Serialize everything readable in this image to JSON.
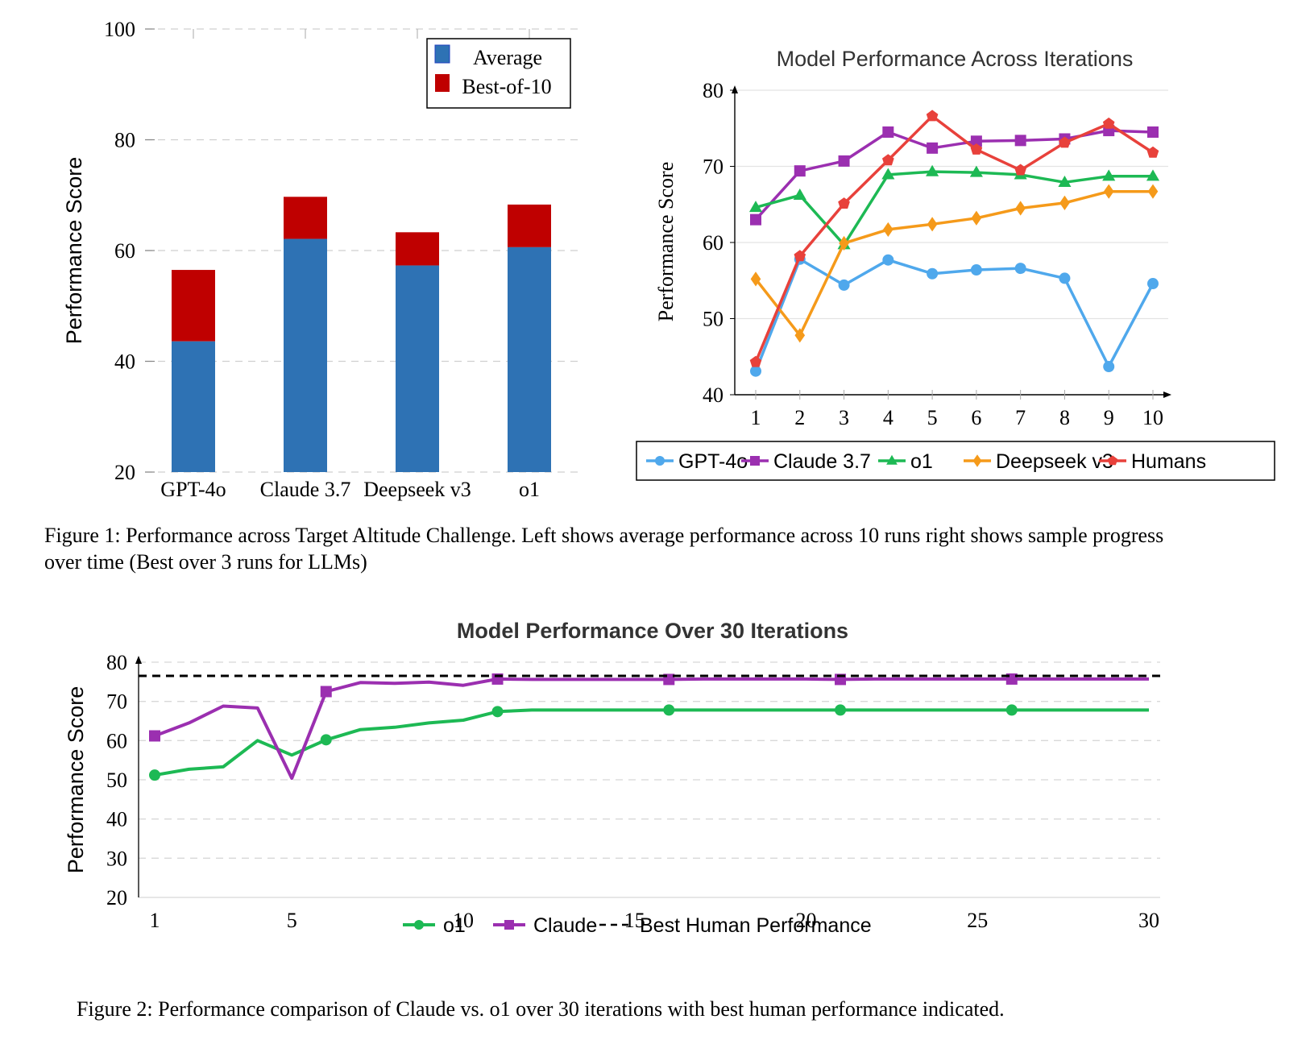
{
  "figure1": {
    "caption": "Figure 1: Performance across Target Altitude Challenge. Left shows average performance across 10 runs right shows sample progress over time (Best over 3 runs for LLMs)"
  },
  "figure2": {
    "caption": "Figure 2: Performance comparison of Claude vs. o1 over 30 iterations with best human performance indicated."
  },
  "colors": {
    "average": "#2e72b4",
    "best_of_10": "#bf0000",
    "gpt4o": "#4fa8ec",
    "claude": "#9b2fb0",
    "o1": "#1db954",
    "deepseek": "#f59a1a",
    "humans": "#e8413b",
    "best_human": "#000000"
  },
  "chart_data": [
    {
      "type": "bar",
      "stacked": true,
      "title": "",
      "xlabel": "",
      "ylabel": "Performance Score",
      "ylim": [
        20,
        100
      ],
      "yticks": [
        20,
        40,
        60,
        80,
        100
      ],
      "grid": true,
      "legend_position": "top-right",
      "categories": [
        "GPT-4o",
        "Claude 3.7",
        "Deepseek v3",
        "o1"
      ],
      "series": [
        {
          "name": "Average",
          "values": [
            43.6,
            62.1,
            57.3,
            60.6
          ]
        },
        {
          "name": "Best-of-10",
          "values": [
            56.5,
            69.7,
            63.3,
            68.3
          ]
        }
      ]
    },
    {
      "type": "line",
      "title": "Model Performance Across Iterations",
      "xlabel": "",
      "ylabel": "Performance Score",
      "ylim": [
        40,
        80
      ],
      "xlim": [
        1,
        10
      ],
      "yticks": [
        40,
        50,
        60,
        70,
        80
      ],
      "x": [
        1,
        2,
        3,
        4,
        5,
        6,
        7,
        8,
        9,
        10
      ],
      "grid": true,
      "legend_position": "bottom",
      "series": [
        {
          "name": "GPT-4o",
          "marker": "circle",
          "values": [
            43.1,
            57.8,
            54.4,
            57.7,
            55.9,
            56.4,
            56.6,
            55.3,
            43.7,
            54.6
          ]
        },
        {
          "name": "Claude 3.7",
          "marker": "square",
          "values": [
            63.0,
            69.4,
            70.7,
            74.5,
            72.4,
            73.3,
            73.4,
            73.6,
            74.7,
            74.5
          ]
        },
        {
          "name": "o1",
          "marker": "triangle",
          "values": [
            64.6,
            66.2,
            59.7,
            68.9,
            69.3,
            69.2,
            68.9,
            67.9,
            68.7,
            68.7
          ]
        },
        {
          "name": "Deepseek v3",
          "marker": "diamond",
          "values": [
            55.2,
            47.8,
            59.9,
            61.7,
            62.4,
            63.2,
            64.5,
            65.2,
            66.7,
            66.7
          ]
        },
        {
          "name": "Humans",
          "marker": "pentagon",
          "values": [
            44.3,
            58.2,
            65.1,
            70.8,
            76.6,
            72.2,
            69.5,
            73.1,
            75.6,
            71.8
          ]
        }
      ]
    },
    {
      "type": "line",
      "title": "Model Performance Over 30 Iterations",
      "xlabel": "",
      "ylabel": "Performance Score",
      "ylim": [
        20,
        80
      ],
      "xlim": [
        1,
        30
      ],
      "yticks": [
        20,
        30,
        40,
        50,
        60,
        70,
        80
      ],
      "xticks": [
        1,
        5,
        10,
        15,
        20,
        25,
        30
      ],
      "grid": true,
      "legend_position": "bottom",
      "marker_every": [
        1,
        6,
        11,
        16,
        21,
        26
      ],
      "x": [
        1,
        2,
        3,
        4,
        5,
        6,
        7,
        8,
        9,
        10,
        11,
        12,
        13,
        14,
        15,
        16,
        17,
        18,
        19,
        20,
        21,
        22,
        23,
        24,
        25,
        26,
        27,
        28,
        29,
        30
      ],
      "series": [
        {
          "name": "o1",
          "marker": "circle",
          "values": [
            51.2,
            52.7,
            53.3,
            60.0,
            56.3,
            60.2,
            62.8,
            63.4,
            64.5,
            65.2,
            67.4,
            67.8,
            67.8,
            67.8,
            67.8,
            67.8,
            67.8,
            67.8,
            67.8,
            67.8,
            67.8,
            67.8,
            67.8,
            67.8,
            67.8,
            67.8,
            67.8,
            67.8,
            67.8,
            67.8
          ]
        },
        {
          "name": "Claude",
          "marker": "square",
          "values": [
            61.2,
            64.5,
            68.8,
            68.3,
            50.4,
            72.5,
            74.8,
            74.6,
            74.9,
            74.1,
            75.7,
            75.6,
            75.6,
            75.6,
            75.6,
            75.6,
            75.7,
            75.7,
            75.7,
            75.7,
            75.6,
            75.7,
            75.7,
            75.7,
            75.7,
            75.7,
            75.7,
            75.7,
            75.7,
            75.7
          ]
        },
        {
          "name": "Best Human Performance",
          "style": "dashed",
          "constant": 76.5
        }
      ]
    }
  ]
}
